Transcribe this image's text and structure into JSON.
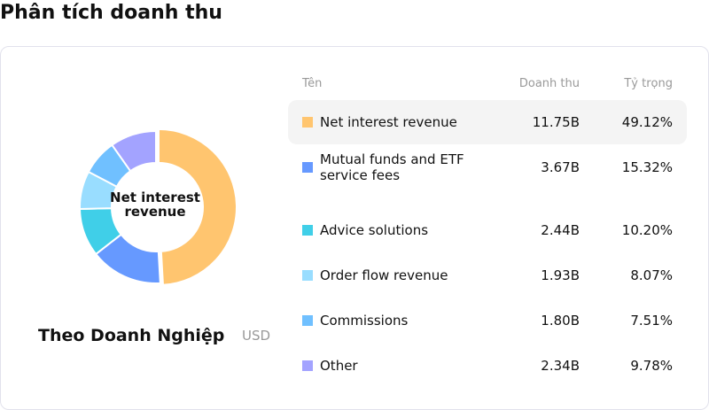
{
  "title": "Phân tích doanh thu",
  "subtitle": "Theo Doanh Nghiệp",
  "unit": "USD",
  "center_label": "Net interest revenue",
  "headers": {
    "name": "Tên",
    "revenue": "Doanh thu",
    "share": "Tỷ trọng"
  },
  "chart_data": {
    "type": "pie",
    "donut": true,
    "categories": [
      "Net interest revenue",
      "Mutual funds and ETF service fees",
      "Advice solutions",
      "Order flow revenue",
      "Commissions",
      "Other"
    ],
    "values": [
      11.75,
      3.67,
      2.44,
      1.93,
      1.8,
      2.34
    ],
    "value_labels": [
      "11.75B",
      "3.67B",
      "2.44B",
      "1.93B",
      "1.80B",
      "2.34B"
    ],
    "shares": [
      "49.12%",
      "15.32%",
      "10.20%",
      "8.07%",
      "7.51%",
      "9.78%"
    ],
    "colors": [
      "#FFC56F",
      "#6699FF",
      "#40CFE8",
      "#99DDFF",
      "#70C0FF",
      "#A3A3FF"
    ],
    "highlighted": 0
  }
}
